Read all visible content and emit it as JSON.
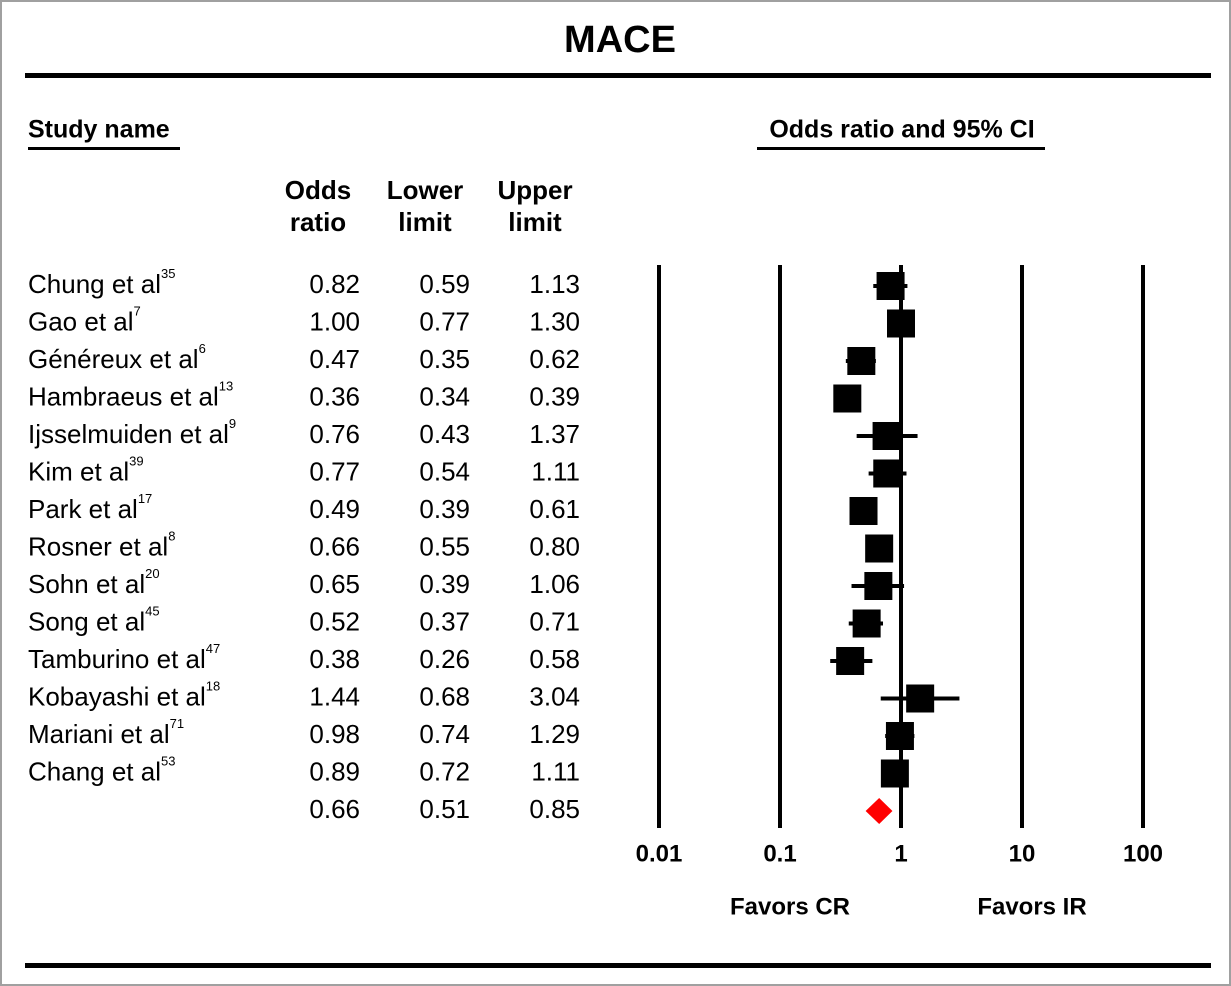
{
  "chart_data": {
    "type": "forest",
    "title": "MACE",
    "study_header": "Study name",
    "plot_header": "Odds ratio and 95% CI",
    "categories": [
      "Chung et al",
      "Gao et al",
      "Généreux et al",
      "Hambraeus et al",
      "Ijsselmuiden et al",
      "Kim et al",
      "Park et al",
      "Rosner et al",
      "Sohn et al",
      "Song et al",
      "Tamburino et al",
      "Kobayashi et al",
      "Mariani et al",
      "Chang et al",
      null
    ],
    "refs": [
      "35",
      "7",
      "6",
      "13",
      "9",
      "39",
      "17",
      "8",
      "20",
      "45",
      "47",
      "18",
      "71",
      "53",
      null
    ],
    "series": [
      {
        "header": [
          "Odds",
          "ratio"
        ],
        "values": [
          0.82,
          1.0,
          0.47,
          0.36,
          0.76,
          0.77,
          0.49,
          0.66,
          0.65,
          0.52,
          0.38,
          1.44,
          0.98,
          0.89,
          0.66
        ],
        "value_labels": [
          "0.82",
          "1.00",
          "0.47",
          "0.36",
          "0.76",
          "0.77",
          "0.49",
          "0.66",
          "0.65",
          "0.52",
          "0.38",
          "1.44",
          "0.98",
          "0.89",
          "0.66"
        ]
      },
      {
        "header": [
          "Lower",
          "limit"
        ],
        "values": [
          0.59,
          0.77,
          0.35,
          0.34,
          0.43,
          0.54,
          0.39,
          0.55,
          0.39,
          0.37,
          0.26,
          0.68,
          0.74,
          0.72,
          0.51
        ],
        "value_labels": [
          "0.59",
          "0.77",
          "0.35",
          "0.34",
          "0.43",
          "0.54",
          "0.39",
          "0.55",
          "0.39",
          "0.37",
          "0.26",
          "0.68",
          "0.74",
          "0.72",
          "0.51"
        ]
      },
      {
        "header": [
          "Upper",
          "limit"
        ],
        "values": [
          1.13,
          1.3,
          0.62,
          0.39,
          1.37,
          1.11,
          0.61,
          0.8,
          1.06,
          0.71,
          0.58,
          3.04,
          1.29,
          1.11,
          0.85
        ],
        "value_labels": [
          "1.13",
          "1.30",
          "0.62",
          "0.39",
          "1.37",
          "1.11",
          "0.61",
          "0.80",
          "1.06",
          "0.71",
          "0.58",
          "3.04",
          "1.29",
          "1.11",
          "0.85"
        ]
      }
    ],
    "study_color": "#000000",
    "summary_color": "#ff0000",
    "xscale": "log",
    "xlim": [
      0.01,
      100
    ],
    "xticks": [
      0.01,
      0.1,
      1,
      10,
      100
    ],
    "left_label": "Favors CR",
    "right_label": "Favors IR"
  }
}
